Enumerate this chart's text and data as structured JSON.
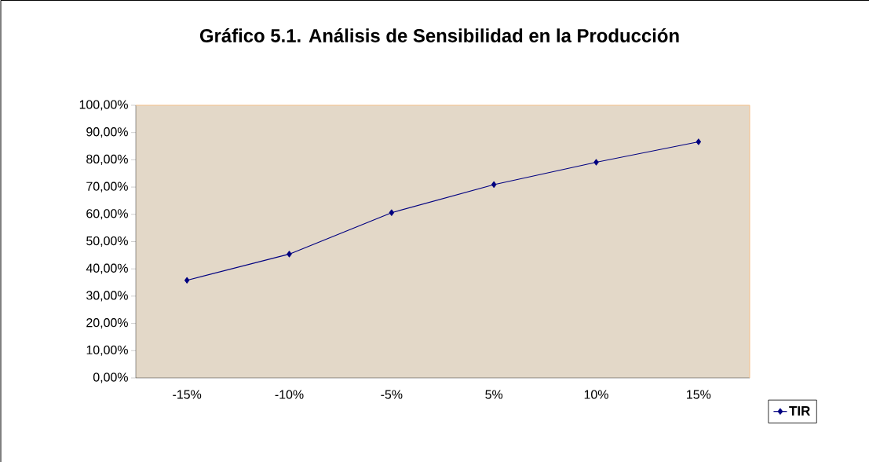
{
  "chart_data": {
    "type": "line",
    "title": "Gráfico 5.1. Análisis de Sensibilidad en la Producción",
    "categories": [
      "-15%",
      "-10%",
      "-5%",
      "5%",
      "10%",
      "15%"
    ],
    "series": [
      {
        "name": "TIR",
        "color": "#000080",
        "values": [
          35.8,
          45.4,
          60.6,
          70.9,
          79.1,
          86.6
        ]
      }
    ],
    "ylim": [
      0,
      100
    ],
    "yticks": [
      {
        "value": 0,
        "label": "0,00%"
      },
      {
        "value": 10,
        "label": "10,00%"
      },
      {
        "value": 20,
        "label": "20,00%"
      },
      {
        "value": 30,
        "label": "30,00%"
      },
      {
        "value": 40,
        "label": "40,00%"
      },
      {
        "value": 50,
        "label": "50,00%"
      },
      {
        "value": 60,
        "label": "60,00%"
      },
      {
        "value": 70,
        "label": "70,00%"
      },
      {
        "value": 80,
        "label": "80,00%"
      },
      {
        "value": 90,
        "label": "90,00%"
      },
      {
        "value": 100,
        "label": "100,00%"
      }
    ],
    "marker": "diamond",
    "line_style": "solid",
    "legend": "bottom right",
    "grid": false
  }
}
